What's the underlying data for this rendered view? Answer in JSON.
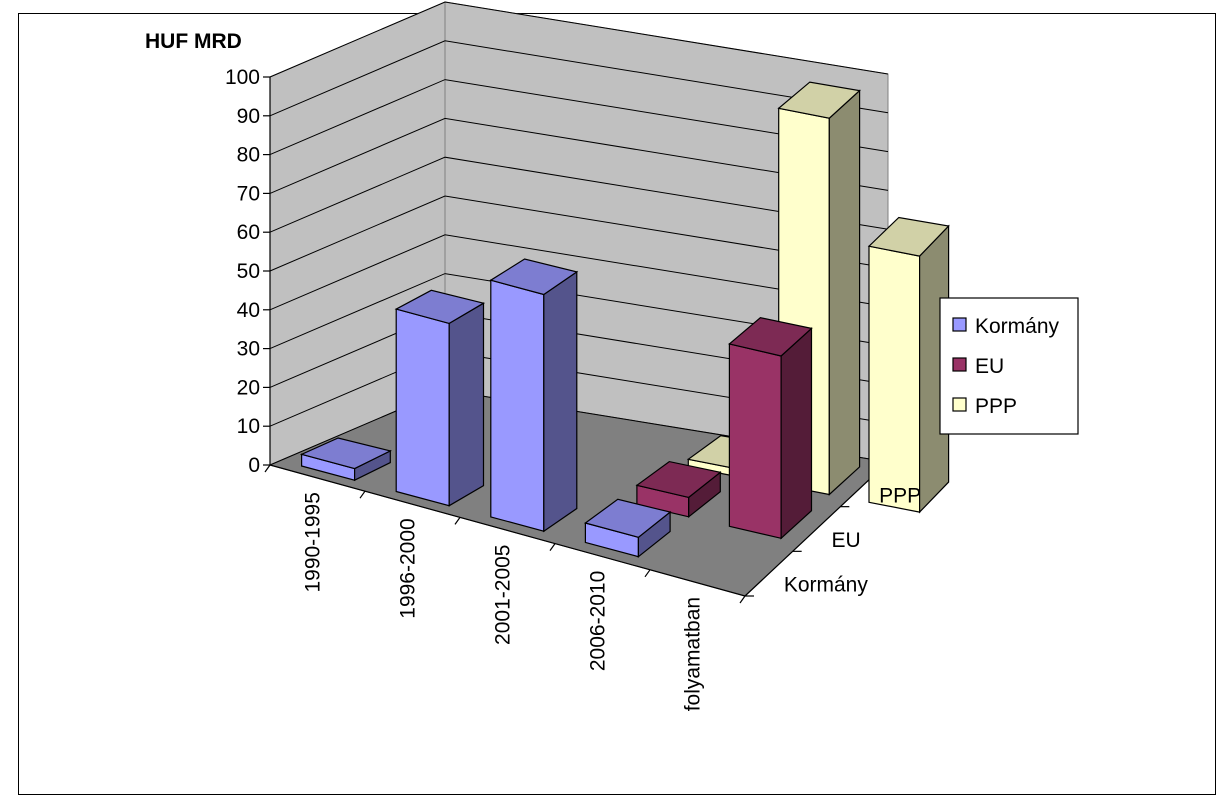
{
  "chart_data": {
    "type": "bar",
    "unit_label": "HUF MRD",
    "categories": [
      "1990-1995",
      "1996-2000",
      "2001-2005",
      "2006-2010",
      "folyamatban"
    ],
    "series": [
      {
        "name": "Kormány",
        "values": [
          3,
          47,
          61,
          5,
          0
        ],
        "color": "#9999ff"
      },
      {
        "name": "EU",
        "values": [
          0,
          0,
          0,
          5,
          47
        ],
        "color": "#993366"
      },
      {
        "name": "PPP",
        "values": [
          0,
          0,
          0,
          2,
          97
        ],
        "color": "#ffffcc"
      }
    ],
    "extra_ppp_bar_value": 66,
    "ylim": [
      0,
      100
    ],
    "y_ticks": [
      "0",
      "10",
      "20",
      "30",
      "40",
      "50",
      "60",
      "70",
      "80",
      "90",
      "100"
    ],
    "depth_axis_labels": [
      "Kormány",
      "EU",
      "PPP"
    ],
    "legend_position": "right",
    "grid": true
  }
}
